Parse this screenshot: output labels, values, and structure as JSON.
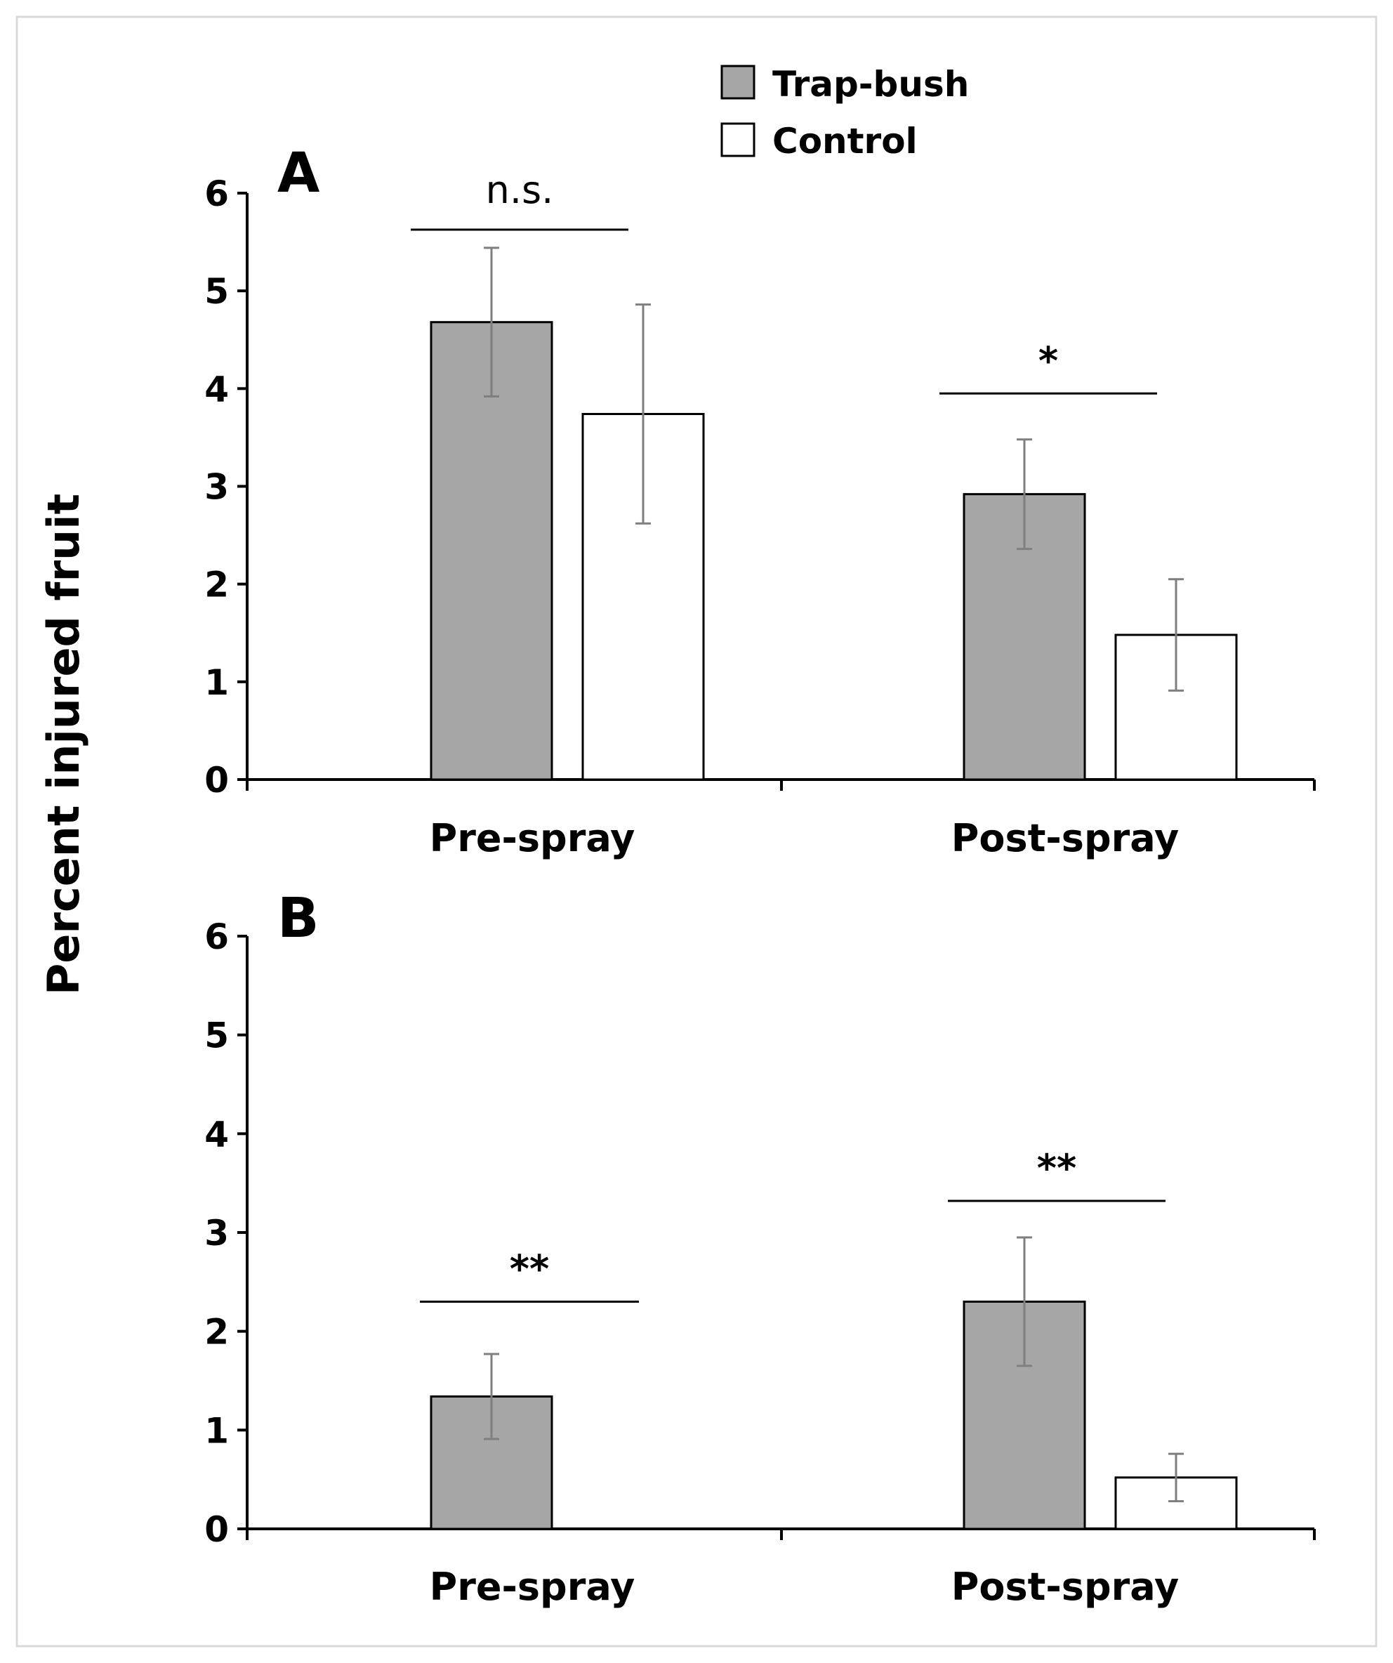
{
  "chart_data": {
    "type": "bar",
    "ylabel": "Percent injured fruit",
    "ylim": [
      0,
      6
    ],
    "yticks": [
      "0",
      "1",
      "2",
      "3",
      "4",
      "5",
      "6"
    ],
    "legend": {
      "placement": "top-center",
      "entries": [
        {
          "name": "Trap-bush",
          "color": "#a6a6a6"
        },
        {
          "name": "Control",
          "color": "#ffffff"
        }
      ]
    },
    "panels": [
      {
        "label": "A",
        "categories": [
          "Pre-spray",
          "Post-spray"
        ],
        "series": [
          {
            "name": "Trap-bush",
            "values": [
              4.68,
              2.92
            ],
            "errors": [
              0.76,
              0.56
            ]
          },
          {
            "name": "Control",
            "values": [
              3.74,
              1.48
            ],
            "errors": [
              1.12,
              0.57
            ]
          }
        ],
        "significance": [
          "n.s.",
          "*"
        ]
      },
      {
        "label": "B",
        "categories": [
          "Pre-spray",
          "Post-spray"
        ],
        "series": [
          {
            "name": "Trap-bush",
            "values": [
              1.34,
              2.3
            ],
            "errors": [
              0.43,
              0.65
            ]
          },
          {
            "name": "Control",
            "values": [
              0,
              0.52
            ],
            "errors": [
              0,
              0.24
            ]
          }
        ],
        "significance": [
          "**",
          "**"
        ]
      }
    ]
  }
}
